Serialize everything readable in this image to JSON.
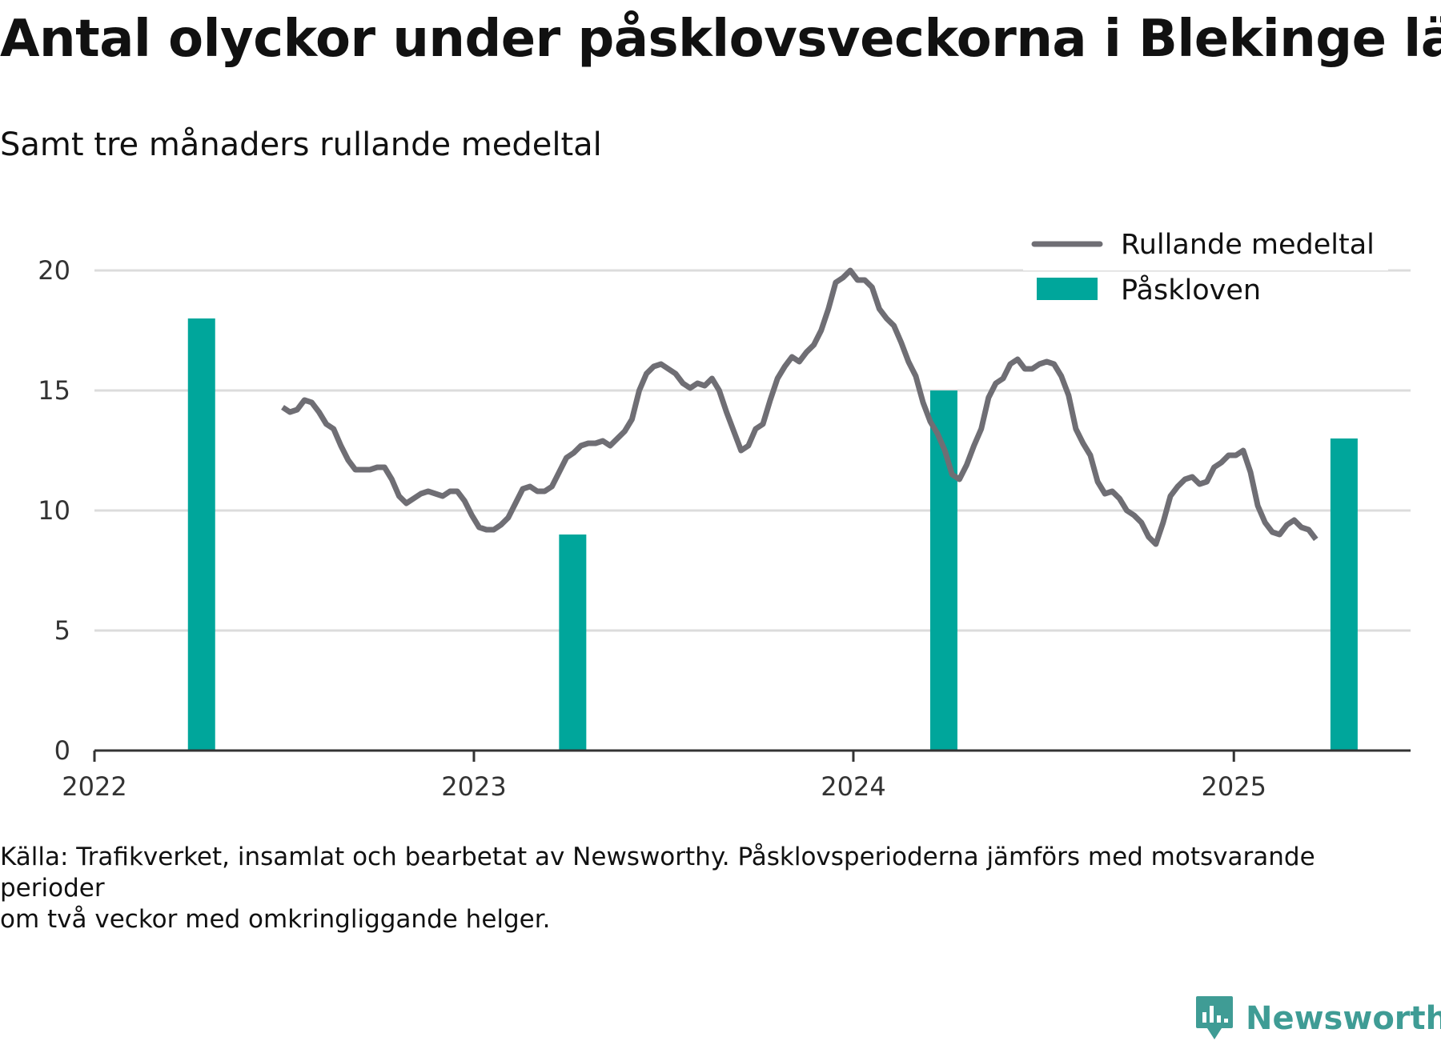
{
  "title": "Antal olyckor under påsklovsveckorna i Blekinge län",
  "subtitle": "Samt tre månaders rullande medeltal",
  "source": {
    "line1": "Källa: Trafikverket, insamlat och bearbetat av Newsworthy. Påsklovsperioderna jämförs med motsvarande",
    "line2": "perioder",
    "line3": "om två veckor med omkringliggande helger."
  },
  "logo": {
    "text": "Newsworthy",
    "icon": "newsworthy-logo-icon"
  },
  "colors": {
    "line": "#6f6e74",
    "bar": "#00a69b",
    "grid": "#dcdcdc",
    "axis": "#333333",
    "logo": "#3f9c95"
  },
  "chart_data": {
    "type": "bar+line",
    "title": "Antal olyckor under påsklovsveckorna i Blekinge län",
    "subtitle": "Samt tre månaders rullande medeltal",
    "xlabel": "",
    "ylabel": "",
    "ylim": [
      0,
      20
    ],
    "xlim": [
      "2022-01-01",
      "2025-06-20"
    ],
    "yticks": [
      0,
      5,
      10,
      15,
      20
    ],
    "xticks": [
      {
        "date": "2022-01-01",
        "label": "2022"
      },
      {
        "date": "2023-01-01",
        "label": "2023"
      },
      {
        "date": "2024-01-01",
        "label": "2024"
      },
      {
        "date": "2025-01-01",
        "label": "2025"
      }
    ],
    "grid": "horizontal",
    "legend_position": "top-right",
    "legend": [
      "Rullande medeltal",
      "Påskloven"
    ],
    "bars": {
      "name": "Påskloven",
      "points": [
        {
          "date": "2022-04-14",
          "value": 18
        },
        {
          "date": "2023-04-06",
          "value": 9
        },
        {
          "date": "2024-03-28",
          "value": 15
        },
        {
          "date": "2025-04-17",
          "value": 13
        }
      ]
    },
    "line": {
      "name": "Rullande medeltal",
      "points": [
        [
          "2022-07-01",
          14.3
        ],
        [
          "2022-07-08",
          14.1
        ],
        [
          "2022-07-15",
          14.2
        ],
        [
          "2022-07-22",
          14.6
        ],
        [
          "2022-07-29",
          14.5
        ],
        [
          "2022-08-05",
          14.1
        ],
        [
          "2022-08-12",
          13.6
        ],
        [
          "2022-08-19",
          13.4
        ],
        [
          "2022-08-26",
          12.7
        ],
        [
          "2022-09-02",
          12.1
        ],
        [
          "2022-09-09",
          11.7
        ],
        [
          "2022-09-16",
          11.7
        ],
        [
          "2022-09-23",
          11.7
        ],
        [
          "2022-09-30",
          11.8
        ],
        [
          "2022-10-07",
          11.8
        ],
        [
          "2022-10-14",
          11.3
        ],
        [
          "2022-10-21",
          10.6
        ],
        [
          "2022-10-28",
          10.3
        ],
        [
          "2022-11-04",
          10.5
        ],
        [
          "2022-11-11",
          10.7
        ],
        [
          "2022-11-18",
          10.8
        ],
        [
          "2022-11-25",
          10.7
        ],
        [
          "2022-12-02",
          10.6
        ],
        [
          "2022-12-09",
          10.8
        ],
        [
          "2022-12-16",
          10.8
        ],
        [
          "2022-12-23",
          10.4
        ],
        [
          "2022-12-30",
          9.8
        ],
        [
          "2023-01-06",
          9.3
        ],
        [
          "2023-01-13",
          9.2
        ],
        [
          "2023-01-20",
          9.2
        ],
        [
          "2023-01-27",
          9.4
        ],
        [
          "2023-02-03",
          9.7
        ],
        [
          "2023-02-10",
          10.3
        ],
        [
          "2023-02-17",
          10.9
        ],
        [
          "2023-02-24",
          11.0
        ],
        [
          "2023-03-03",
          10.8
        ],
        [
          "2023-03-10",
          10.8
        ],
        [
          "2023-03-17",
          11.0
        ],
        [
          "2023-03-24",
          11.6
        ],
        [
          "2023-03-31",
          12.2
        ],
        [
          "2023-04-07",
          12.4
        ],
        [
          "2023-04-14",
          12.7
        ],
        [
          "2023-04-21",
          12.8
        ],
        [
          "2023-04-28",
          12.8
        ],
        [
          "2023-05-05",
          12.9
        ],
        [
          "2023-05-12",
          12.7
        ],
        [
          "2023-05-19",
          13.0
        ],
        [
          "2023-05-26",
          13.3
        ],
        [
          "2023-06-02",
          13.8
        ],
        [
          "2023-06-09",
          15.0
        ],
        [
          "2023-06-16",
          15.7
        ],
        [
          "2023-06-23",
          16.0
        ],
        [
          "2023-06-30",
          16.1
        ],
        [
          "2023-07-07",
          15.9
        ],
        [
          "2023-07-14",
          15.7
        ],
        [
          "2023-07-21",
          15.3
        ],
        [
          "2023-07-28",
          15.1
        ],
        [
          "2023-08-04",
          15.3
        ],
        [
          "2023-08-11",
          15.2
        ],
        [
          "2023-08-18",
          15.5
        ],
        [
          "2023-08-25",
          15.0
        ],
        [
          "2023-09-01",
          14.1
        ],
        [
          "2023-09-08",
          13.3
        ],
        [
          "2023-09-15",
          12.5
        ],
        [
          "2023-09-22",
          12.7
        ],
        [
          "2023-09-29",
          13.4
        ],
        [
          "2023-10-06",
          13.6
        ],
        [
          "2023-10-13",
          14.6
        ],
        [
          "2023-10-20",
          15.5
        ],
        [
          "2023-10-27",
          16.0
        ],
        [
          "2023-11-03",
          16.4
        ],
        [
          "2023-11-10",
          16.2
        ],
        [
          "2023-11-17",
          16.6
        ],
        [
          "2023-11-24",
          16.9
        ],
        [
          "2023-12-01",
          17.5
        ],
        [
          "2023-12-08",
          18.4
        ],
        [
          "2023-12-15",
          19.5
        ],
        [
          "2023-12-22",
          19.7
        ],
        [
          "2023-12-29",
          20.0
        ],
        [
          "2024-01-05",
          19.6
        ],
        [
          "2024-01-12",
          19.6
        ],
        [
          "2024-01-19",
          19.3
        ],
        [
          "2024-01-26",
          18.4
        ],
        [
          "2024-02-02",
          18.0
        ],
        [
          "2024-02-09",
          17.7
        ],
        [
          "2024-02-16",
          17.0
        ],
        [
          "2024-02-23",
          16.2
        ],
        [
          "2024-03-01",
          15.6
        ],
        [
          "2024-03-08",
          14.5
        ],
        [
          "2024-03-15",
          13.7
        ],
        [
          "2024-03-22",
          13.2
        ],
        [
          "2024-03-29",
          12.5
        ],
        [
          "2024-04-05",
          11.5
        ],
        [
          "2024-04-12",
          11.3
        ],
        [
          "2024-04-19",
          11.9
        ],
        [
          "2024-04-26",
          12.7
        ],
        [
          "2024-05-03",
          13.4
        ],
        [
          "2024-05-10",
          14.7
        ],
        [
          "2024-05-17",
          15.3
        ],
        [
          "2024-05-24",
          15.5
        ],
        [
          "2024-05-31",
          16.1
        ],
        [
          "2024-06-07",
          16.3
        ],
        [
          "2024-06-14",
          15.9
        ],
        [
          "2024-06-21",
          15.9
        ],
        [
          "2024-06-28",
          16.1
        ],
        [
          "2024-07-05",
          16.2
        ],
        [
          "2024-07-12",
          16.1
        ],
        [
          "2024-07-19",
          15.6
        ],
        [
          "2024-07-26",
          14.8
        ],
        [
          "2024-08-02",
          13.4
        ],
        [
          "2024-08-09",
          12.8
        ],
        [
          "2024-08-16",
          12.3
        ],
        [
          "2024-08-23",
          11.2
        ],
        [
          "2024-08-30",
          10.7
        ],
        [
          "2024-09-06",
          10.8
        ],
        [
          "2024-09-13",
          10.5
        ],
        [
          "2024-09-20",
          10.0
        ],
        [
          "2024-09-27",
          9.8
        ],
        [
          "2024-10-04",
          9.5
        ],
        [
          "2024-10-11",
          8.9
        ],
        [
          "2024-10-18",
          8.6
        ],
        [
          "2024-10-25",
          9.5
        ],
        [
          "2024-11-01",
          10.6
        ],
        [
          "2024-11-08",
          11.0
        ],
        [
          "2024-11-15",
          11.3
        ],
        [
          "2024-11-22",
          11.4
        ],
        [
          "2024-11-29",
          11.1
        ],
        [
          "2024-12-06",
          11.2
        ],
        [
          "2024-12-13",
          11.8
        ],
        [
          "2024-12-20",
          12.0
        ],
        [
          "2024-12-27",
          12.3
        ],
        [
          "2025-01-03",
          12.3
        ],
        [
          "2025-01-10",
          12.5
        ],
        [
          "2025-01-17",
          11.6
        ],
        [
          "2025-01-24",
          10.2
        ],
        [
          "2025-01-31",
          9.5
        ],
        [
          "2025-02-07",
          9.1
        ],
        [
          "2025-02-14",
          9.0
        ],
        [
          "2025-02-21",
          9.4
        ],
        [
          "2025-02-28",
          9.6
        ],
        [
          "2025-03-07",
          9.3
        ],
        [
          "2025-03-14",
          9.2
        ],
        [
          "2025-03-21",
          8.8
        ]
      ]
    }
  }
}
